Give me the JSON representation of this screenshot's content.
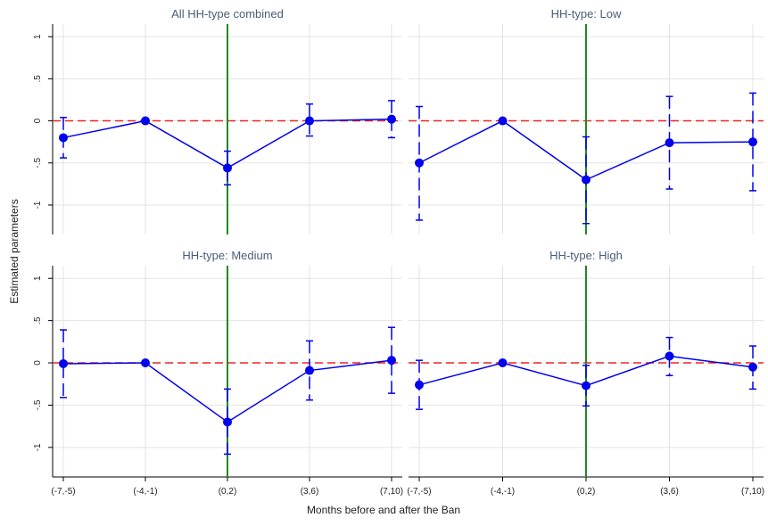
{
  "chart_data": {
    "type": "line",
    "layout": "2x2 facets, shared axes",
    "xlabel": "Months before and after the Ban",
    "ylabel": "Estimated parameters",
    "categories": [
      "(-7,-5)",
      "(-4,-1)",
      "(0,2)",
      "(3,6)",
      "(7,10)"
    ],
    "yticks": [
      "1",
      ".5",
      "0",
      "-.5",
      "-1"
    ],
    "ytick_values": [
      1,
      0.5,
      0,
      -0.5,
      -1
    ],
    "ylim": [
      -1.35,
      1.15
    ],
    "event_line_category": "(0,2)",
    "reference_line": 0,
    "grid": true,
    "colors": {
      "series": "#0000ee",
      "reference": "#ee2222",
      "event": "#228822",
      "grid": "#e3e3e3",
      "title": "#4a5d78"
    },
    "panels": [
      {
        "title": "All HH-type combined",
        "values": [
          -0.2,
          0.0,
          -0.56,
          0.0,
          0.02
        ],
        "ci_low": [
          -0.44,
          0.0,
          -0.76,
          -0.18,
          -0.2
        ],
        "ci_high": [
          0.04,
          0.0,
          -0.36,
          0.2,
          0.24
        ]
      },
      {
        "title": "HH-type: Low",
        "values": [
          -0.5,
          0.0,
          -0.7,
          -0.26,
          -0.25
        ],
        "ci_low": [
          -1.18,
          0.0,
          -1.22,
          -0.81,
          -0.83
        ],
        "ci_high": [
          0.17,
          0.0,
          -0.19,
          0.29,
          0.33
        ]
      },
      {
        "title": "HH-type: Medium",
        "values": [
          -0.01,
          0.0,
          -0.7,
          -0.09,
          0.03
        ],
        "ci_low": [
          -0.41,
          0.0,
          -1.08,
          -0.44,
          -0.36
        ],
        "ci_high": [
          0.39,
          0.0,
          -0.31,
          0.26,
          0.42
        ]
      },
      {
        "title": "HH-type: High",
        "values": [
          -0.26,
          0.0,
          -0.27,
          0.08,
          -0.05
        ],
        "ci_low": [
          -0.55,
          0.0,
          -0.51,
          -0.15,
          -0.31
        ],
        "ci_high": [
          0.03,
          0.0,
          -0.03,
          0.3,
          0.2
        ]
      }
    ]
  }
}
